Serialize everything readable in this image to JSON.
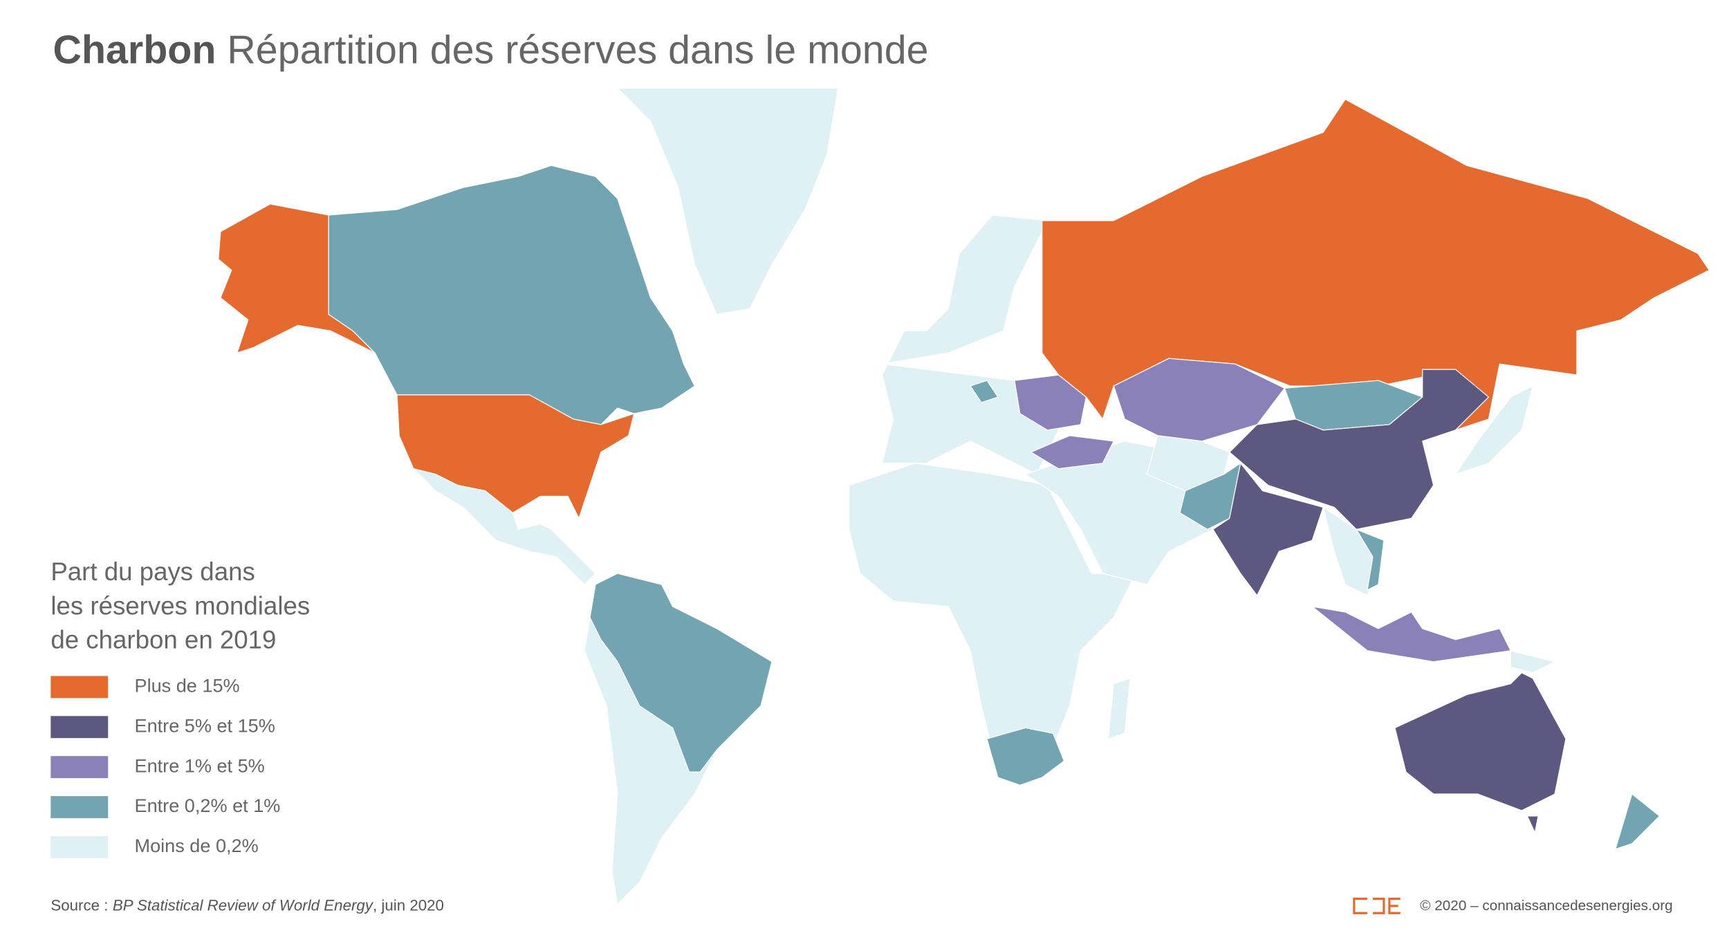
{
  "header": {
    "title_bold": "Charbon",
    "title": "Répartition des réserves dans le monde"
  },
  "legend": {
    "title": [
      "Part du pays dans",
      "les réserves mondiales",
      "de charbon en 2019"
    ],
    "items": [
      {
        "label": "Plus de 15%",
        "color": "#e46a30"
      },
      {
        "label": "Entre 5% et 15%",
        "color": "#5c5880"
      },
      {
        "label": "Entre 1% et 5%",
        "color": "#8981b8"
      },
      {
        "label": "Entre 0,2% et 1%",
        "color": "#72a5b1"
      },
      {
        "label": "Moins de 0,2%",
        "color": "#dff1f4"
      }
    ]
  },
  "footer": {
    "source_prefix": "Source :",
    "source_title": "BP Statistical Review of World Energy",
    "source_suffix": ", juin 2020",
    "copyright": "© 2020 – connaissancedesenergies.org"
  }
}
